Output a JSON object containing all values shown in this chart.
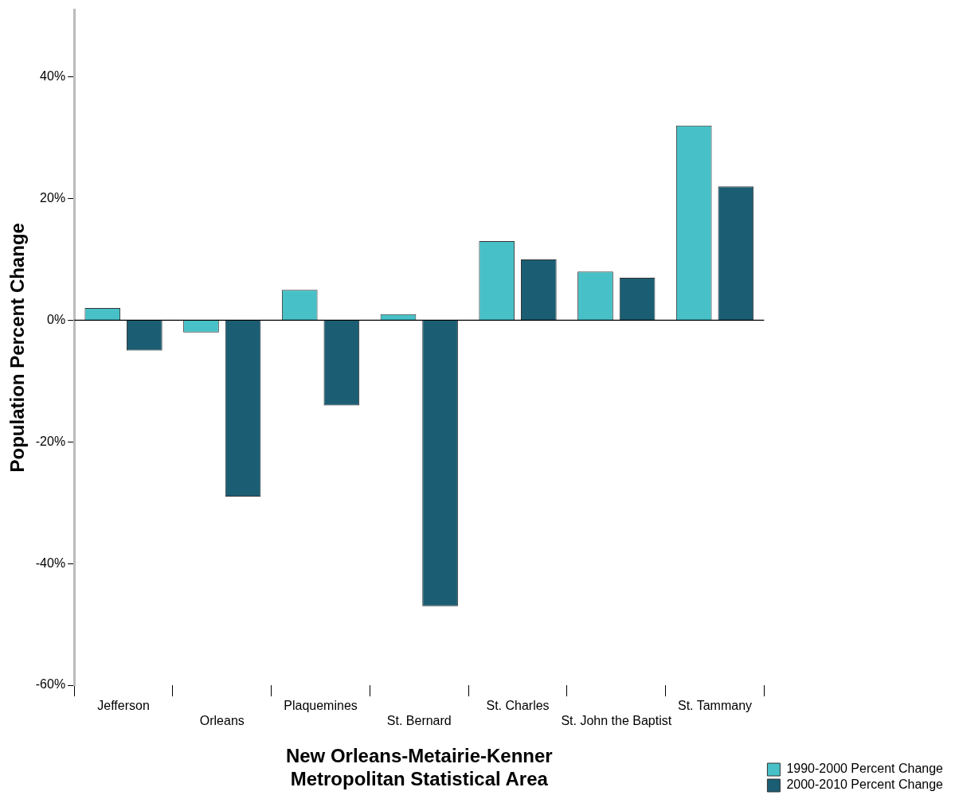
{
  "chart_data": {
    "type": "bar",
    "xlabel": "New Orleans-Metairie-Kenner\nMetropolitan Statistical Area",
    "ylabel": "Population Percent Change",
    "categories": [
      "Jefferson",
      "Orleans",
      "Plaquemines",
      "St. Bernard",
      "St. Charles",
      "St. John the Baptist",
      "St. Tammany"
    ],
    "series": [
      {
        "name": "1990-2000 Percent Change",
        "color": "#47c1c7",
        "values": [
          2,
          -2,
          5,
          1,
          13,
          8,
          32
        ]
      },
      {
        "name": "2000-2010 Percent Change",
        "color": "#1b5e74",
        "values": [
          -5,
          -29,
          -14,
          -47,
          10,
          7,
          22
        ]
      }
    ],
    "ylim": [
      -60,
      51
    ],
    "yticks": [
      {
        "value": -60,
        "label": "-60%"
      },
      {
        "value": -40,
        "label": "-40%"
      },
      {
        "value": -20,
        "label": "-20%"
      },
      {
        "value": 0,
        "label": "0%"
      },
      {
        "value": 20,
        "label": "20%"
      },
      {
        "value": 40,
        "label": "40%"
      }
    ],
    "ref_lines": [
      {
        "axis": "y",
        "value": 0,
        "color": "#000000"
      }
    ],
    "grid": false,
    "legend": "bottom right"
  }
}
